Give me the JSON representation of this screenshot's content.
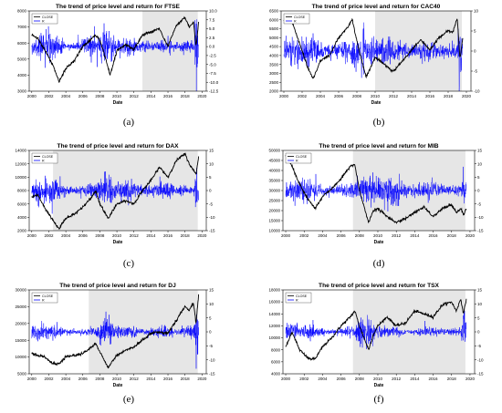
{
  "figure": {
    "panels": [
      {
        "caption": "(a)",
        "title": "The trend of price level and return for FTSE",
        "xlabel": "Date",
        "legend": [
          "CLOSE",
          "R"
        ],
        "ylim": [
          3000,
          8000
        ],
        "yticks": [
          "3000",
          "4000",
          "5000",
          "6000",
          "7000",
          "8000"
        ],
        "rlim": [
          -12.5,
          10
        ],
        "rticks": [
          "-12.5",
          "-10.0",
          "-7.5",
          "-5.0",
          "-2.5",
          "0.0",
          "2.5",
          "5.0",
          "7.5",
          "10.0"
        ]
      },
      {
        "caption": "(b)",
        "title": "The trend of price level and return for CAC40",
        "xlabel": "Date",
        "legend": [
          "CLOSE",
          "R"
        ],
        "ylim": [
          2000,
          6500
        ],
        "yticks": [
          "2000",
          "2500",
          "3000",
          "3500",
          "4000",
          "4500",
          "5000",
          "5500",
          "6000",
          "6500"
        ],
        "rlim": [
          -10,
          10
        ],
        "rticks": [
          "-10",
          "-5",
          "0",
          "5",
          "10"
        ]
      },
      {
        "caption": "(c)",
        "title": "The trend of price level and return for DAX",
        "xlabel": "Date",
        "legend": [
          "CLOSE",
          "R"
        ],
        "ylim": [
          2000,
          14000
        ],
        "yticks": [
          "2000",
          "4000",
          "6000",
          "8000",
          "10000",
          "12000",
          "14000"
        ],
        "rlim": [
          -15,
          15
        ],
        "rticks": [
          "-15",
          "-10",
          "-5",
          "0",
          "5",
          "10",
          "15"
        ]
      },
      {
        "caption": "(d)",
        "title": "The trend of price level and return for MIB",
        "xlabel": "Date",
        "legend": [
          "CLOSE",
          "R"
        ],
        "ylim": [
          10000,
          50000
        ],
        "yticks": [
          "10000",
          "15000",
          "20000",
          "25000",
          "30000",
          "35000",
          "40000",
          "45000",
          "50000"
        ],
        "rlim": [
          -15,
          15
        ],
        "rticks": [
          "-15",
          "-10",
          "-5",
          "0",
          "5",
          "10",
          "15"
        ]
      },
      {
        "caption": "(e)",
        "title": "The trend of price level and return for DJ",
        "xlabel": "Date",
        "legend": [
          "CLOSE",
          "R"
        ],
        "ylim": [
          5000,
          30000
        ],
        "yticks": [
          "5000",
          "10000",
          "15000",
          "20000",
          "25000",
          "30000"
        ],
        "rlim": [
          -15,
          15
        ],
        "rticks": [
          "-15",
          "-10",
          "-5",
          "0",
          "5",
          "10",
          "15"
        ]
      },
      {
        "caption": "(f)",
        "title": "The trend of price level and return for TSX",
        "xlabel": "Date",
        "legend": [
          "CLOSE",
          "R"
        ],
        "ylim": [
          4000,
          18000
        ],
        "yticks": [
          "4000",
          "6000",
          "8000",
          "10000",
          "12000",
          "14000",
          "16000",
          "18000"
        ],
        "rlim": [
          -15,
          15
        ],
        "rticks": [
          "-15",
          "-10",
          "-5",
          "0",
          "5",
          "10",
          "15"
        ]
      }
    ],
    "xticks": [
      "2000",
      "2002",
      "2004",
      "2006",
      "2008",
      "2010",
      "2012",
      "2014",
      "2016",
      "2018",
      "2020"
    ]
  },
  "colors": {
    "close": "#000000",
    "return": "#0000ff",
    "shade": "#e6e6e6"
  },
  "chart_data": [
    {
      "type": "line",
      "title": "The trend of price level and return for FTSE",
      "xlabel": "Date",
      "ylabel": "",
      "ylim": [
        3000,
        8000
      ],
      "y2lim": [
        -12.5,
        10
      ],
      "grid": false,
      "legend_position": "top-left",
      "shaded_period": [
        2013,
        2019.5
      ],
      "x": [
        2000,
        2000.7,
        2001.5,
        2002.5,
        2003.2,
        2004,
        2005,
        2006,
        2006.5,
        2007.5,
        2008,
        2008.7,
        2009.2,
        2010,
        2011,
        2012,
        2013,
        2014,
        2015,
        2015.5,
        2016,
        2016.5,
        2017,
        2018,
        2018.5,
        2019,
        2019.3,
        2019.6
      ],
      "series": [
        {
          "name": "CLOSE",
          "axis": "left",
          "values": [
            6500,
            6300,
            5600,
            4600,
            3600,
            4400,
            4900,
            5800,
            6000,
            6500,
            6200,
            5000,
            4000,
            5500,
            5900,
            5600,
            6500,
            6700,
            6900,
            6300,
            5800,
            6500,
            7100,
            7600,
            7000,
            7300,
            5800,
            7300
          ]
        },
        {
          "name": "R",
          "axis": "right",
          "kind": "returns",
          "baseline": 0,
          "amplitude": [
            2,
            3,
            4,
            5,
            3,
            1,
            1,
            2,
            3,
            3,
            5,
            7,
            4,
            2,
            3,
            2,
            1.5,
            1,
            1.5,
            2,
            3,
            1.5,
            1,
            2,
            1.5,
            2,
            10,
            4
          ]
        }
      ]
    },
    {
      "type": "line",
      "title": "The trend of price level and return for CAC40",
      "xlabel": "Date",
      "ylabel": "",
      "ylim": [
        2000,
        6500
      ],
      "y2lim": [
        -10,
        10
      ],
      "grid": false,
      "legend_position": "top-left",
      "shaded_period": [
        2010,
        2019.5
      ],
      "x": [
        2000,
        2000.7,
        2001.5,
        2002.5,
        2003.2,
        2004,
        2005,
        2006,
        2007,
        2007.5,
        2008,
        2009,
        2009.5,
        2010,
        2011,
        2012,
        2013,
        2014,
        2015,
        2016,
        2017,
        2018,
        2018.5,
        2019,
        2019.3,
        2019.6
      ],
      "series": [
        {
          "name": "CLOSE",
          "axis": "left",
          "values": [
            6000,
            6200,
            5000,
            3500,
            2700,
            3700,
            4000,
            5000,
            5600,
            6000,
            4800,
            2800,
            3300,
            3900,
            3500,
            3100,
            3700,
            4300,
            4900,
            4300,
            5000,
            5400,
            5300,
            6100,
            3800,
            5000
          ]
        },
        {
          "name": "R",
          "axis": "right",
          "kind": "returns",
          "baseline": 0,
          "amplitude": [
            3,
            4,
            4,
            5,
            4,
            2,
            1.5,
            2,
            3,
            3,
            5,
            6,
            4,
            3,
            4,
            3,
            2,
            2,
            2,
            3,
            1.5,
            2,
            2,
            2,
            10,
            4
          ]
        }
      ]
    },
    {
      "type": "line",
      "title": "The trend of price level and return for DAX",
      "xlabel": "Date",
      "ylabel": "",
      "ylim": [
        2000,
        14000
      ],
      "y2lim": [
        -15,
        15
      ],
      "grid": false,
      "legend_position": "top-left",
      "shaded_period": [
        2002.5,
        2019.5
      ],
      "x": [
        2000,
        2000.7,
        2001.5,
        2002.5,
        2003.2,
        2004,
        2005,
        2006,
        2007,
        2007.5,
        2008,
        2009,
        2009.5,
        2010,
        2011,
        2012,
        2013,
        2014,
        2015,
        2016,
        2017,
        2018,
        2018.5,
        2019,
        2019.3,
        2019.6
      ],
      "series": [
        {
          "name": "CLOSE",
          "axis": "left",
          "values": [
            7000,
            7400,
            5500,
            3500,
            2300,
            3900,
            4500,
            5500,
            7000,
            8000,
            6000,
            3800,
            5000,
            6000,
            6500,
            6000,
            8000,
            9500,
            11500,
            10000,
            12500,
            13500,
            12000,
            11000,
            10500,
            13000
          ]
        },
        {
          "name": "R",
          "axis": "right",
          "kind": "returns",
          "baseline": 0,
          "amplitude": [
            4,
            4,
            5,
            6,
            5,
            2,
            1.5,
            2,
            3,
            3,
            6,
            8,
            5,
            3,
            5,
            4,
            2,
            2,
            3,
            3,
            2,
            2,
            2,
            2,
            10,
            5
          ]
        }
      ]
    },
    {
      "type": "line",
      "title": "The trend of price level and return for MIB",
      "xlabel": "Date",
      "ylabel": "",
      "ylim": [
        10000,
        50000
      ],
      "y2lim": [
        -15,
        15
      ],
      "grid": false,
      "legend_position": "top-left",
      "shaded_period": [
        2007.3,
        2019.5
      ],
      "x": [
        2000,
        2000.7,
        2001.5,
        2002.5,
        2003.2,
        2004,
        2005,
        2006,
        2007,
        2007.5,
        2008,
        2009,
        2009.5,
        2010,
        2011,
        2012,
        2013,
        2014,
        2015,
        2016,
        2017,
        2018,
        2018.5,
        2019,
        2019.3,
        2019.6
      ],
      "series": [
        {
          "name": "CLOSE",
          "axis": "left",
          "values": [
            47000,
            42000,
            33000,
            25000,
            21000,
            27000,
            31000,
            36000,
            42000,
            43000,
            30000,
            14000,
            20000,
            21000,
            17000,
            14000,
            16000,
            19000,
            22000,
            17000,
            21000,
            23000,
            19000,
            21000,
            18000,
            21000
          ]
        },
        {
          "name": "R",
          "axis": "right",
          "kind": "returns",
          "baseline": 0,
          "amplitude": [
            4,
            4,
            5,
            5,
            4,
            2,
            1.5,
            2,
            3,
            3,
            6,
            7,
            5,
            4,
            6,
            5,
            3,
            2,
            3,
            4,
            2,
            2,
            2,
            2,
            10,
            4
          ]
        }
      ]
    },
    {
      "type": "line",
      "title": "The trend of price level and return for DJ",
      "xlabel": "Date",
      "ylabel": "",
      "ylim": [
        5000,
        30000
      ],
      "y2lim": [
        -15,
        15
      ],
      "grid": false,
      "legend_position": "top-left",
      "shaded_period": [
        2006.7,
        2019.5
      ],
      "x": [
        2000,
        2000.7,
        2001.5,
        2002.5,
        2003.2,
        2004,
        2005,
        2006,
        2007,
        2007.5,
        2008,
        2009,
        2009.5,
        2010,
        2011,
        2012,
        2013,
        2014,
        2015,
        2016,
        2017,
        2018,
        2018.5,
        2019,
        2019.3,
        2019.6
      ],
      "series": [
        {
          "name": "CLOSE",
          "axis": "left",
          "values": [
            11000,
            10500,
            10000,
            8000,
            8000,
            10000,
            10500,
            11000,
            13000,
            14000,
            11500,
            6800,
            9000,
            10500,
            12000,
            13000,
            15000,
            17000,
            17500,
            17000,
            21000,
            25000,
            24000,
            26000,
            20000,
            28500
          ]
        },
        {
          "name": "R",
          "axis": "right",
          "kind": "returns",
          "baseline": 0,
          "amplitude": [
            3,
            3,
            3,
            3,
            2,
            1,
            1,
            1,
            2,
            2,
            5,
            7,
            3,
            2,
            3,
            2,
            1,
            1,
            2,
            2,
            1,
            2,
            2,
            2,
            12,
            5
          ]
        }
      ]
    },
    {
      "type": "line",
      "title": "The trend of price level and return for TSX",
      "xlabel": "Date",
      "ylabel": "",
      "ylim": [
        4000,
        18000
      ],
      "y2lim": [
        -15,
        15
      ],
      "grid": false,
      "legend_position": "top-left",
      "shaded_period": [
        2007.3,
        2019.5
      ],
      "x": [
        2000,
        2000.7,
        2001.5,
        2002.5,
        2003.2,
        2004,
        2005,
        2006,
        2007,
        2007.5,
        2008,
        2009,
        2009.5,
        2010,
        2011,
        2012,
        2013,
        2014,
        2015,
        2016,
        2017,
        2018,
        2018.5,
        2019,
        2019.3,
        2019.6
      ],
      "series": [
        {
          "name": "CLOSE",
          "axis": "left",
          "values": [
            8500,
            11000,
            8000,
            6500,
            6500,
            8500,
            10000,
            12000,
            13500,
            14500,
            12000,
            8000,
            10500,
            12000,
            13500,
            12000,
            12500,
            14500,
            14000,
            13500,
            15500,
            16000,
            14500,
            16500,
            14000,
            16500
          ]
        },
        {
          "name": "R",
          "axis": "right",
          "kind": "returns",
          "baseline": 0,
          "amplitude": [
            3,
            4,
            3,
            3,
            2,
            1.5,
            1,
            2,
            2,
            2,
            5,
            7,
            3,
            2,
            2,
            2,
            1,
            1,
            2,
            2,
            1,
            1.5,
            1.5,
            1.5,
            12,
            4
          ]
        }
      ]
    }
  ]
}
